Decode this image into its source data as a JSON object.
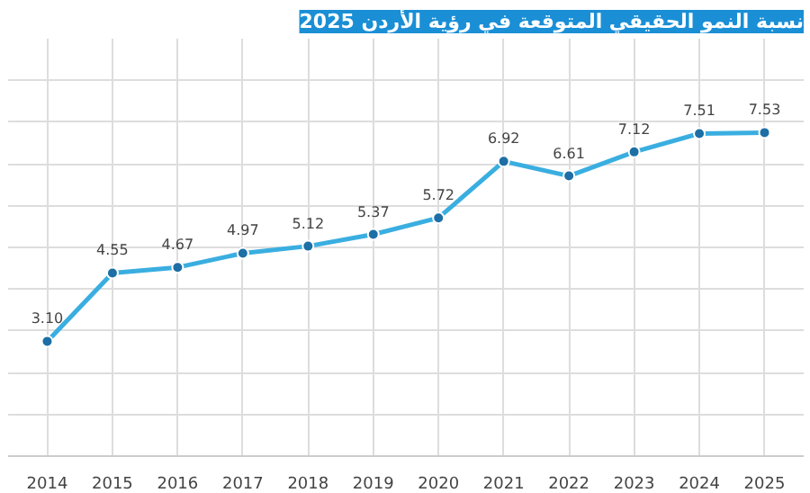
{
  "chart_data": {
    "type": "line",
    "title": "نسبة النمو الحقيقي المتوقعة في رؤية الأردن 2025",
    "categories": [
      "2014",
      "2015",
      "2016",
      "2017",
      "2018",
      "2019",
      "2020",
      "2021",
      "2022",
      "2023",
      "2024",
      "2025"
    ],
    "series": [
      {
        "color": "#3aaee0",
        "values": [
          3.1,
          4.55,
          4.67,
          4.97,
          5.12,
          5.37,
          5.72,
          6.92,
          6.61,
          7.12,
          7.51,
          7.53
        ],
        "value_labels": [
          "3.10",
          "4.55",
          "4.67",
          "4.97",
          "5.12",
          "5.37",
          "5.72",
          "6.92",
          "6.61",
          "7.12",
          "7.51",
          "7.53"
        ]
      }
    ],
    "grid": true,
    "marker": "circle",
    "line_style": "solid",
    "tick_labels": "x"
  }
}
